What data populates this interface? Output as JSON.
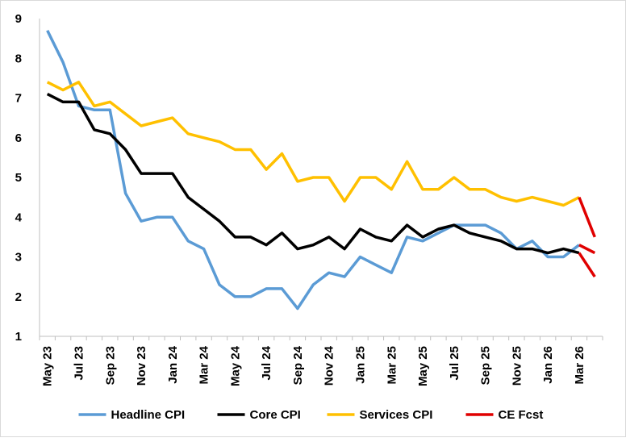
{
  "chart_data": {
    "type": "line",
    "title": "",
    "xlabel": "",
    "ylabel": "",
    "ylim": [
      1,
      9
    ],
    "yticks": [
      1,
      2,
      3,
      4,
      5,
      6,
      7,
      8,
      9
    ],
    "grid": false,
    "legend_position": "bottom",
    "x": [
      "May 23",
      "Jun 23",
      "Jul 23",
      "Aug 23",
      "Sep 23",
      "Oct 23",
      "Nov 23",
      "Dec 23",
      "Jan 24",
      "Feb 24",
      "Mar 24",
      "Apr 24",
      "May 24",
      "Jun 24",
      "Jul 24",
      "Aug 24",
      "Sep 24",
      "Oct 24",
      "Nov 24",
      "Dec 24",
      "Jan 25",
      "Feb 25",
      "Mar 25",
      "Apr 25",
      "May 25",
      "Jun 25",
      "Jul 25",
      "Aug 25",
      "Sep 25",
      "Oct 25",
      "Nov 25",
      "Dec 25",
      "Jan 26",
      "Feb 26",
      "Mar 26",
      "Apr 26"
    ],
    "x_tick_labels": [
      "May 23",
      "Jul 23",
      "Sep 23",
      "Nov 23",
      "Jan 24",
      "Mar 24",
      "May 24",
      "Jul 24",
      "Sep 24",
      "Nov 24",
      "Jan 25",
      "Mar 25",
      "May 25",
      "Jul 25",
      "Sep 25",
      "Nov 25",
      "Jan 26",
      "Mar 26"
    ],
    "series": [
      {
        "name": "Headline CPI",
        "color": "#5b9bd5",
        "values": [
          8.7,
          7.9,
          6.8,
          6.7,
          6.7,
          4.6,
          3.9,
          4.0,
          4.0,
          3.4,
          3.2,
          2.3,
          2.0,
          2.0,
          2.2,
          2.2,
          1.7,
          2.3,
          2.6,
          2.5,
          3.0,
          2.8,
          2.6,
          3.5,
          3.4,
          3.6,
          3.8,
          3.8,
          3.8,
          3.6,
          3.2,
          3.4,
          3.0,
          3.0,
          3.3,
          null
        ]
      },
      {
        "name": "Core CPI",
        "color": "#000000",
        "values": [
          7.1,
          6.9,
          6.9,
          6.2,
          6.1,
          5.7,
          5.1,
          5.1,
          5.1,
          4.5,
          4.2,
          3.9,
          3.5,
          3.5,
          3.3,
          3.6,
          3.2,
          3.3,
          3.5,
          3.2,
          3.7,
          3.5,
          3.4,
          3.8,
          3.5,
          3.7,
          3.8,
          3.6,
          3.5,
          3.4,
          3.2,
          3.2,
          3.1,
          3.2,
          3.1,
          null
        ]
      },
      {
        "name": "Services CPI",
        "color": "#ffc000",
        "values": [
          7.4,
          7.2,
          7.4,
          6.8,
          6.9,
          6.6,
          6.3,
          6.4,
          6.5,
          6.1,
          6.0,
          5.9,
          5.7,
          5.7,
          5.2,
          5.6,
          4.9,
          5.0,
          5.0,
          4.4,
          5.0,
          5.0,
          4.7,
          5.4,
          4.7,
          4.7,
          5.0,
          4.7,
          4.7,
          4.5,
          4.4,
          4.5,
          4.4,
          4.3,
          4.5,
          null
        ]
      },
      {
        "name": "CE Fcst",
        "color": "#e00000",
        "segments": [
          {
            "x": [
              "Mar 26",
              "Apr 26"
            ],
            "values": [
              4.5,
              3.5
            ]
          },
          {
            "x": [
              "Mar 26",
              "Apr 26"
            ],
            "values": [
              3.3,
              3.1
            ]
          },
          {
            "x": [
              "Mar 26",
              "Apr 26"
            ],
            "values": [
              3.1,
              2.5
            ]
          }
        ]
      }
    ]
  }
}
